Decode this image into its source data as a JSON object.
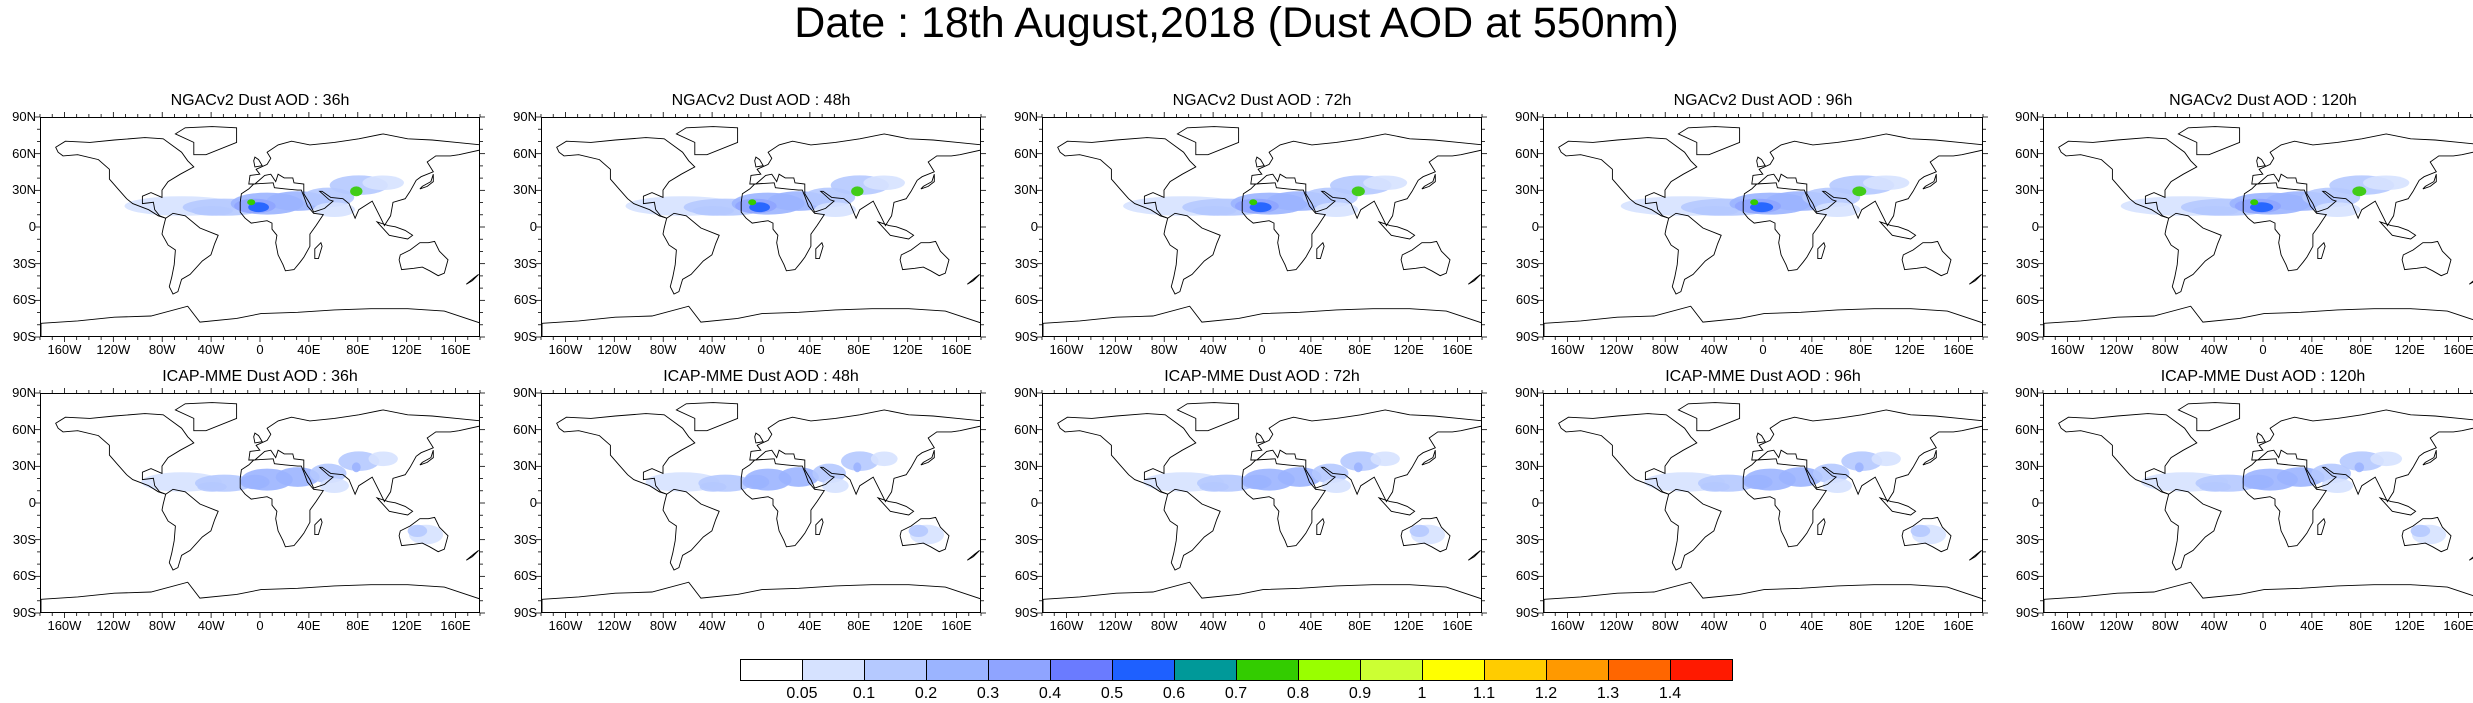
{
  "title": "Date : 18th August,2018 (Dust AOD at 550nm)",
  "panels": [
    {
      "title": "NGACv2 Dust AOD : 36h",
      "model": "NGACv2",
      "lead": "36h",
      "intensity": 0.85
    },
    {
      "title": "NGACv2 Dust AOD : 48h",
      "model": "NGACv2",
      "lead": "48h",
      "intensity": 0.85
    },
    {
      "title": "NGACv2 Dust AOD : 72h",
      "model": "NGACv2",
      "lead": "72h",
      "intensity": 0.9
    },
    {
      "title": "NGACv2 Dust AOD : 96h",
      "model": "NGACv2",
      "lead": "96h",
      "intensity": 0.95
    },
    {
      "title": "NGACv2 Dust AOD : 120h",
      "model": "NGACv2",
      "lead": "120h",
      "intensity": 0.95
    },
    {
      "title": "ICAP-MME Dust AOD : 36h",
      "model": "ICAP-MME",
      "lead": "36h",
      "intensity": 0.6
    },
    {
      "title": "ICAP-MME Dust AOD : 48h",
      "model": "ICAP-MME",
      "lead": "48h",
      "intensity": 0.55
    },
    {
      "title": "ICAP-MME Dust AOD : 72h",
      "model": "ICAP-MME",
      "lead": "72h",
      "intensity": 0.6
    },
    {
      "title": "ICAP-MME Dust AOD : 96h",
      "model": "ICAP-MME",
      "lead": "96h",
      "intensity": 0.6
    },
    {
      "title": "ICAP-MME Dust AOD : 120h",
      "model": "ICAP-MME",
      "lead": "120h",
      "intensity": 0.65
    }
  ],
  "axes": {
    "lat_labels": [
      "90N",
      "60N",
      "30N",
      "0",
      "30S",
      "60S",
      "90S"
    ],
    "lon_labels": [
      "160W",
      "120W",
      "80W",
      "40W",
      "0",
      "40E",
      "80E",
      "120E",
      "160E"
    ]
  },
  "colorbar": {
    "labels": [
      "0.05",
      "0.1",
      "0.2",
      "0.3",
      "0.4",
      "0.5",
      "0.6",
      "0.7",
      "0.8",
      "0.9",
      "1",
      "1.1",
      "1.2",
      "1.3",
      "1.4"
    ],
    "colors": [
      "#ffffff",
      "#d6e2ff",
      "#b5c9ff",
      "#9bb4ff",
      "#8fa4ff",
      "#6a7bff",
      "#1e60ff",
      "#009999",
      "#33cc00",
      "#99ff00",
      "#ccff33",
      "#ffff00",
      "#ffcc00",
      "#ff9900",
      "#ff6600",
      "#ff1a00"
    ]
  },
  "colors": {
    "ocean": "#ffffff",
    "coast": "#000000"
  }
}
